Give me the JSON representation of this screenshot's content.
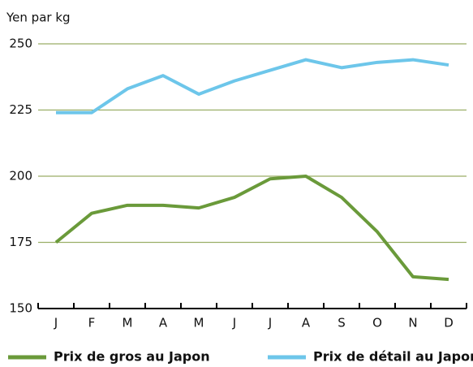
{
  "chart_data": {
    "type": "line",
    "y_label": "Yen par kg",
    "categories": [
      "J",
      "F",
      "M",
      "A",
      "M",
      "J",
      "J",
      "A",
      "S",
      "O",
      "N",
      "D"
    ],
    "series": [
      {
        "name": "Prix de gros au Japon",
        "color": "#6a9a3a",
        "values": [
          175,
          186,
          189,
          189,
          188,
          192,
          199,
          200,
          192,
          179,
          162,
          161
        ]
      },
      {
        "name": "Prix de détail au Japon",
        "color": "#6dc6ea",
        "values": [
          224,
          224,
          233,
          238,
          231,
          236,
          240,
          244,
          241,
          243,
          244,
          242
        ]
      }
    ],
    "ylim": [
      150,
      250
    ],
    "yticks": [
      150,
      175,
      200,
      225,
      250
    ],
    "grid": true,
    "grid_color": "#9aae66"
  }
}
